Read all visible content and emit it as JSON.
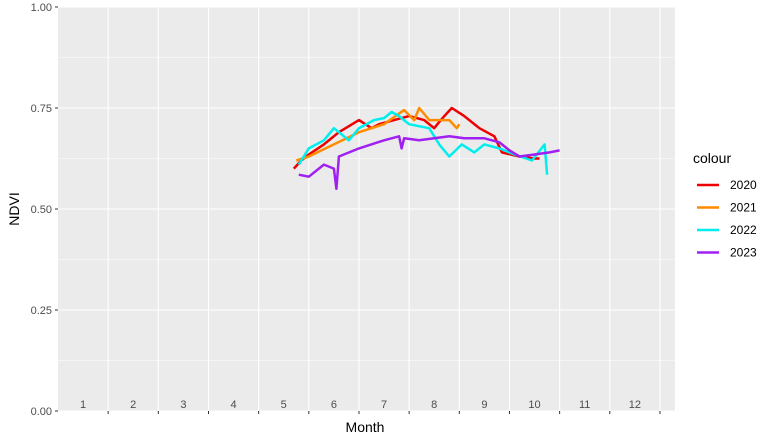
{
  "chart_data": {
    "type": "line",
    "title": "",
    "xlabel": "Month",
    "ylabel": "NDVI",
    "xlim": [
      0.5,
      12.8
    ],
    "ylim": [
      0,
      1
    ],
    "grid": true,
    "x_ticks": [
      "1",
      "2",
      "3",
      "4",
      "5",
      "6",
      "7",
      "8",
      "9",
      "10",
      "11",
      "12"
    ],
    "y_ticks": [
      "0.00",
      "0.25",
      "0.50",
      "0.75",
      "1.00"
    ],
    "legend": {
      "title": "colour",
      "placement": "right"
    },
    "series": [
      {
        "name": "2020",
        "color": "#EE0000",
        "points": [
          [
            5.2,
            0.6
          ],
          [
            5.35,
            0.62
          ],
          [
            5.5,
            0.635
          ],
          [
            5.8,
            0.66
          ],
          [
            6.1,
            0.69
          ],
          [
            6.5,
            0.72
          ],
          [
            6.75,
            0.7
          ],
          [
            6.9,
            0.71
          ],
          [
            7.2,
            0.72
          ],
          [
            7.5,
            0.73
          ],
          [
            7.8,
            0.72
          ],
          [
            8.0,
            0.7
          ],
          [
            8.1,
            0.715
          ],
          [
            8.2,
            0.73
          ],
          [
            8.35,
            0.75
          ],
          [
            8.6,
            0.73
          ],
          [
            8.9,
            0.7
          ],
          [
            9.2,
            0.68
          ],
          [
            9.35,
            0.64
          ],
          [
            9.7,
            0.63
          ],
          [
            10.0,
            0.625
          ],
          [
            10.1,
            0.625
          ]
        ]
      },
      {
        "name": "2021",
        "color": "#FF8C00",
        "points": [
          [
            5.25,
            0.62
          ],
          [
            5.5,
            0.63
          ],
          [
            6.0,
            0.66
          ],
          [
            6.5,
            0.69
          ],
          [
            7.0,
            0.71
          ],
          [
            7.4,
            0.745
          ],
          [
            7.6,
            0.72
          ],
          [
            7.7,
            0.75
          ],
          [
            7.9,
            0.72
          ],
          [
            8.3,
            0.72
          ],
          [
            8.45,
            0.7
          ],
          [
            8.5,
            0.71
          ]
        ]
      },
      {
        "name": "2022",
        "color": "#00EEEE",
        "points": [
          [
            5.3,
            0.61
          ],
          [
            5.5,
            0.65
          ],
          [
            5.8,
            0.67
          ],
          [
            6.0,
            0.7
          ],
          [
            6.1,
            0.69
          ],
          [
            6.3,
            0.67
          ],
          [
            6.5,
            0.7
          ],
          [
            6.8,
            0.72
          ],
          [
            7.0,
            0.725
          ],
          [
            7.15,
            0.74
          ],
          [
            7.3,
            0.73
          ],
          [
            7.5,
            0.71
          ],
          [
            7.9,
            0.7
          ],
          [
            8.1,
            0.66
          ],
          [
            8.3,
            0.63
          ],
          [
            8.55,
            0.66
          ],
          [
            8.8,
            0.64
          ],
          [
            9.0,
            0.66
          ],
          [
            9.3,
            0.65
          ],
          [
            9.6,
            0.635
          ],
          [
            9.95,
            0.62
          ],
          [
            10.2,
            0.66
          ],
          [
            10.25,
            0.585
          ]
        ]
      },
      {
        "name": "2023",
        "color": "#A020F0",
        "points": [
          [
            5.3,
            0.585
          ],
          [
            5.5,
            0.58
          ],
          [
            5.8,
            0.61
          ],
          [
            6.0,
            0.6
          ],
          [
            6.05,
            0.55
          ],
          [
            6.1,
            0.63
          ],
          [
            6.5,
            0.65
          ],
          [
            7.0,
            0.67
          ],
          [
            7.3,
            0.68
          ],
          [
            7.35,
            0.65
          ],
          [
            7.4,
            0.675
          ],
          [
            7.7,
            0.67
          ],
          [
            8.0,
            0.675
          ],
          [
            8.3,
            0.68
          ],
          [
            8.6,
            0.675
          ],
          [
            9.0,
            0.675
          ],
          [
            9.3,
            0.665
          ],
          [
            9.5,
            0.645
          ],
          [
            9.7,
            0.63
          ],
          [
            10.0,
            0.635
          ],
          [
            10.3,
            0.64
          ],
          [
            10.5,
            0.645
          ]
        ]
      }
    ]
  }
}
